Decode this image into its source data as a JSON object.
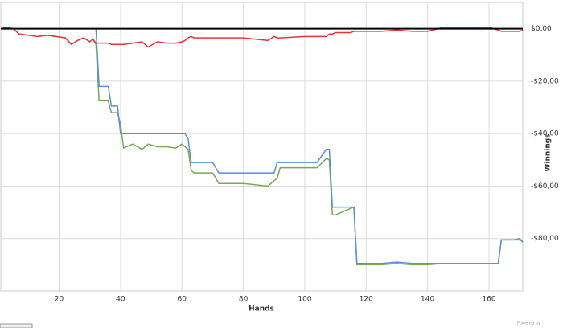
{
  "chart_data": {
    "type": "line",
    "x_label": "Hands",
    "y_label": "Winnings",
    "footer": "Powered by",
    "x": [
      1,
      3,
      5,
      7,
      10,
      13,
      16,
      19,
      22,
      24,
      26,
      28,
      30,
      31,
      32,
      33,
      36,
      37,
      39,
      40,
      41,
      44,
      47,
      49,
      52,
      55,
      58,
      60,
      61,
      62,
      63,
      64,
      70,
      72,
      80,
      88,
      90,
      91,
      92,
      100,
      104,
      107,
      108,
      109,
      110,
      115,
      116,
      117,
      118,
      125,
      130,
      135,
      140,
      145,
      150,
      155,
      160,
      163,
      164,
      168,
      170,
      171
    ],
    "series": [
      {
        "color": "#7aa656",
        "values": [
          0,
          0.5,
          0,
          -2,
          -2.5,
          -3,
          -2.5,
          -3,
          -3.5,
          -6,
          -4.5,
          -3.5,
          -5,
          -4,
          -6,
          -27.5,
          -27.5,
          -32,
          -32,
          -36.5,
          -45.5,
          -44,
          -46,
          -44,
          -45,
          -45,
          -45.5,
          -44,
          -45,
          -46,
          -54,
          -55,
          -55,
          -59,
          -59,
          -60,
          -58,
          -57,
          -53,
          -53,
          -53,
          -49.5,
          -50,
          -71,
          -71,
          -68.5,
          -68,
          -90,
          -90,
          -90,
          -89.5,
          -90,
          -90,
          -89.5,
          -89.5,
          -89.5,
          -89.5,
          -89.5,
          -80.5,
          -80.5,
          -80,
          -81.5
        ]
      },
      {
        "color": "#5b8de0",
        "values": [
          null,
          null,
          null,
          null,
          null,
          null,
          null,
          null,
          null,
          null,
          null,
          null,
          null,
          null,
          0,
          -22,
          -22,
          -29.5,
          -29.5,
          -40,
          -40,
          -40,
          -40,
          -40,
          -40,
          -40,
          -40,
          -40,
          -40,
          -42,
          -51,
          -51,
          -51,
          -55,
          -55,
          -55,
          -55,
          -51,
          -51,
          -51,
          -51,
          -46,
          -46,
          -68,
          -68,
          -68,
          -68,
          -89.5,
          -89.5,
          -89.5,
          -89,
          -89.5,
          -89.5,
          -89.5,
          -89.5,
          -89.5,
          -89.5,
          -89.5,
          -80.5,
          -80.5,
          -80.5,
          -81
        ]
      },
      {
        "color": "#e8343a",
        "values": [
          0,
          0.5,
          0,
          -2,
          -2.5,
          -3,
          -2.5,
          -3,
          -3.5,
          -6,
          -4.5,
          -3.5,
          -5,
          -4,
          -5.5,
          -5.5,
          -5.5,
          -6,
          -6,
          -6,
          -6,
          -5.5,
          -5,
          -7,
          -5,
          -5.5,
          -5.5,
          -5,
          -4.5,
          -3.5,
          -3,
          -3.5,
          -3.5,
          -3.5,
          -3.5,
          -4.5,
          -3,
          -3.5,
          -3.5,
          -3,
          -3,
          -3,
          -2,
          -2,
          -1.5,
          -1.5,
          -1,
          -1,
          -1,
          -1,
          -0.5,
          -1,
          -1,
          0.5,
          0.5,
          0.5,
          0.5,
          -0.5,
          -1,
          -1,
          -1,
          -0.5
        ]
      }
    ],
    "xlim": [
      1,
      171
    ],
    "ylim": [
      -100,
      10
    ],
    "xticks": [
      20,
      40,
      60,
      80,
      100,
      120,
      140,
      160
    ],
    "yticks": [
      {
        "value": 0,
        "label": "$0,00"
      },
      {
        "value": -20,
        "label": "-$20,00"
      },
      {
        "value": -40,
        "label": "-$40,00"
      },
      {
        "value": -60,
        "label": "-$60,00"
      },
      {
        "value": -80,
        "label": "-$80,00"
      }
    ],
    "grid": true
  }
}
